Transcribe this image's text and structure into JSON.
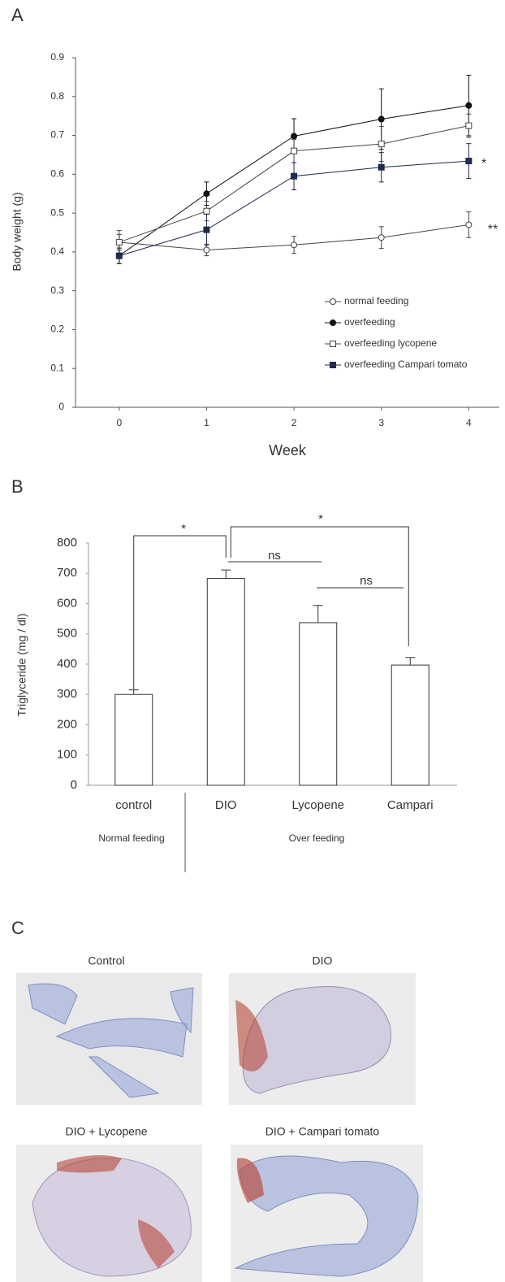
{
  "panel_labels": [
    "A",
    "B",
    "C"
  ],
  "chart_data": [
    {
      "type": "line",
      "xlabel": "Week",
      "ylabel": "Body weight (g)",
      "x": [
        0,
        1,
        2,
        3,
        4
      ],
      "xlim": [
        -0.5,
        4.35
      ],
      "xticks": [
        0,
        1,
        2,
        3,
        4
      ],
      "ylim": [
        0,
        0.9
      ],
      "yticks": [
        0,
        0.1,
        0.2,
        0.3,
        0.4,
        0.5,
        0.6,
        0.7,
        0.8,
        0.9
      ],
      "legend": "lower right",
      "series": [
        {
          "name": "normal feeding",
          "color": "#444444",
          "marker": "circle-open",
          "values": [
            0.425,
            0.405,
            0.418,
            0.437,
            0.47
          ],
          "errors": [
            0.03,
            0.015,
            0.022,
            0.028,
            0.033
          ]
        },
        {
          "name": "overfeeding",
          "color": "#111111",
          "marker": "circle-filled",
          "values": [
            0.39,
            0.55,
            0.698,
            0.742,
            0.777
          ],
          "errors": [
            0.02,
            0.03,
            0.045,
            0.078,
            0.078
          ]
        },
        {
          "name": "overfeeding lycopene",
          "color": "#444444",
          "marker": "square-open",
          "values": [
            0.425,
            0.505,
            0.66,
            0.678,
            0.725
          ],
          "errors": [
            0.02,
            0.025,
            0.03,
            0.045,
            0.03
          ]
        },
        {
          "name": "overfeeding Campari tomato",
          "color": "#1f2a4d",
          "marker": "square-filled",
          "values": [
            0.39,
            0.457,
            0.595,
            0.618,
            0.634
          ],
          "errors": [
            0.02,
            0.04,
            0.035,
            0.038,
            0.045
          ]
        }
      ],
      "annotations": [
        "*",
        "**"
      ]
    },
    {
      "type": "bar",
      "ylabel": "Triglyceride (mg / dl)",
      "categories": [
        "control",
        "DIO",
        "Lycopene",
        "Campari"
      ],
      "values": [
        300,
        683,
        537,
        397
      ],
      "errors": [
        15,
        28,
        57,
        25
      ],
      "color": "#ffffff",
      "ylim": [
        0,
        800
      ],
      "yticks": [
        0,
        100,
        200,
        300,
        400,
        500,
        600,
        700,
        800
      ],
      "groups": [
        "Normal feeding",
        "Over feeding"
      ],
      "annotations": [
        "*",
        "*",
        "ns",
        "ns"
      ]
    }
  ],
  "images": [
    {
      "title": "Control"
    },
    {
      "title": "DIO"
    },
    {
      "title": "DIO + Lycopene"
    },
    {
      "title": "DIO + Campari tomato"
    }
  ]
}
